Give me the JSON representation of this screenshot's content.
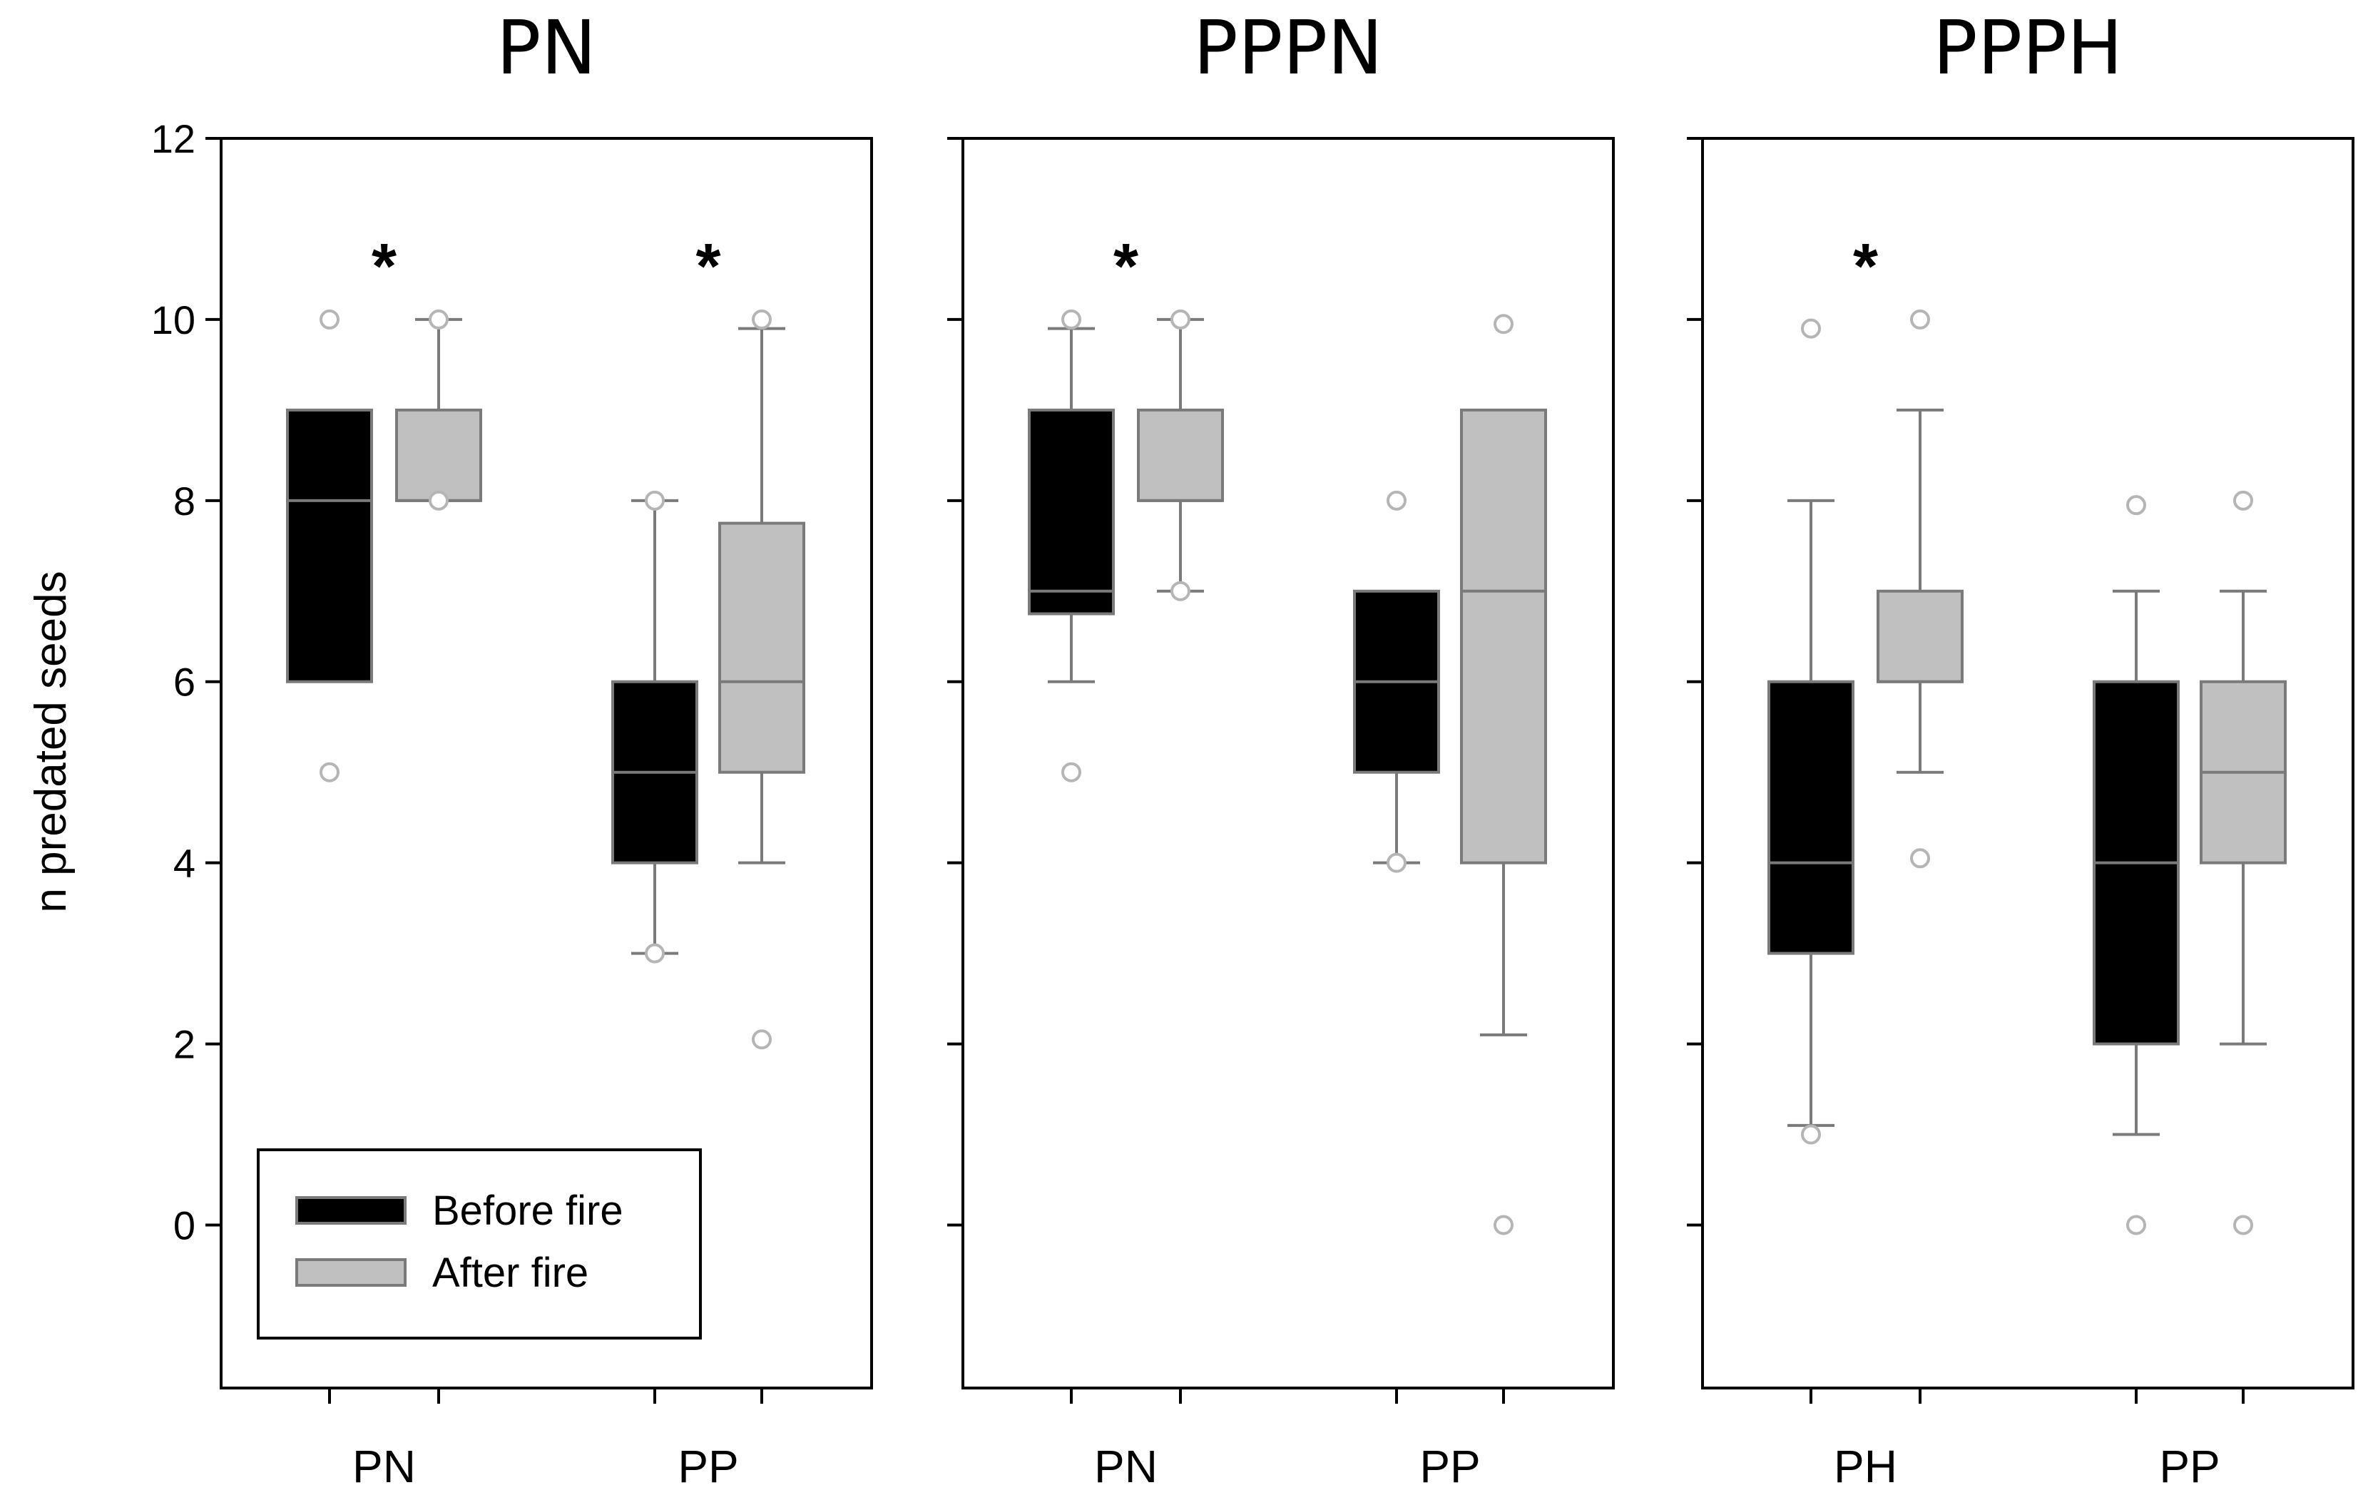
{
  "chart_data": {
    "type": "box",
    "ylabel": "n predated seeds",
    "ylim": [
      -1.8,
      12
    ],
    "yticks": [
      0,
      2,
      4,
      6,
      8,
      10,
      12
    ],
    "colors": {
      "before": "#000000",
      "after": "#c0c0c0",
      "line": "#7a7a7a",
      "outlier": "#b5b5b5"
    },
    "legend": {
      "position": "bottom-left of first panel",
      "entries": [
        {
          "key": "before",
          "label": "Before fire"
        },
        {
          "key": "after",
          "label": "After fire"
        }
      ]
    },
    "panels": [
      {
        "title": "PN",
        "groups": [
          {
            "label": "PN",
            "significant": true,
            "marker": "*",
            "before": {
              "q1": 6,
              "median": 8,
              "q3": 9,
              "whisker_low": 6,
              "whisker_high": 9,
              "outliers": [
                10,
                5
              ]
            },
            "after": {
              "q1": 8,
              "median": 8,
              "q3": 9,
              "whisker_low": 8,
              "whisker_high": 10,
              "outliers": [
                10,
                8
              ]
            }
          },
          {
            "label": "PP",
            "significant": true,
            "marker": "*",
            "before": {
              "q1": 4,
              "median": 5,
              "q3": 6,
              "whisker_low": 3,
              "whisker_high": 8,
              "outliers": [
                8,
                3
              ]
            },
            "after": {
              "q1": 5,
              "median": 6,
              "q3": 7.75,
              "whisker_low": 4,
              "whisker_high": 9.9,
              "outliers": [
                10,
                2.05
              ]
            }
          }
        ]
      },
      {
        "title": "PPPN",
        "groups": [
          {
            "label": "PN",
            "significant": true,
            "marker": "*",
            "before": {
              "q1": 6.75,
              "median": 7,
              "q3": 9,
              "whisker_low": 6,
              "whisker_high": 9.9,
              "outliers": [
                10,
                5
              ]
            },
            "after": {
              "q1": 8,
              "median": 8,
              "q3": 9,
              "whisker_low": 7,
              "whisker_high": 10,
              "outliers": [
                10,
                7
              ]
            }
          },
          {
            "label": "PP",
            "significant": false,
            "marker": "",
            "before": {
              "q1": 5,
              "median": 6,
              "q3": 7,
              "whisker_low": 4,
              "whisker_high": 7,
              "outliers": [
                8,
                4
              ]
            },
            "after": {
              "q1": 4,
              "median": 7,
              "q3": 9,
              "whisker_low": 2.1,
              "whisker_high": 9,
              "outliers": [
                9.95,
                0
              ]
            }
          }
        ]
      },
      {
        "title": "PPPH",
        "groups": [
          {
            "label": "PH",
            "significant": true,
            "marker": "*",
            "before": {
              "q1": 3,
              "median": 4,
              "q3": 6,
              "whisker_low": 1.1,
              "whisker_high": 8,
              "outliers": [
                9.9,
                1
              ]
            },
            "after": {
              "q1": 6,
              "median": 6,
              "q3": 7,
              "whisker_low": 5,
              "whisker_high": 9,
              "outliers": [
                10,
                4.05
              ]
            }
          },
          {
            "label": "PP",
            "significant": false,
            "marker": "",
            "before": {
              "q1": 2,
              "median": 4,
              "q3": 6,
              "whisker_low": 1,
              "whisker_high": 7,
              "outliers": [
                7.95,
                0
              ]
            },
            "after": {
              "q1": 4,
              "median": 5,
              "q3": 6,
              "whisker_low": 2,
              "whisker_high": 7,
              "outliers": [
                8,
                0
              ]
            }
          }
        ]
      }
    ]
  }
}
